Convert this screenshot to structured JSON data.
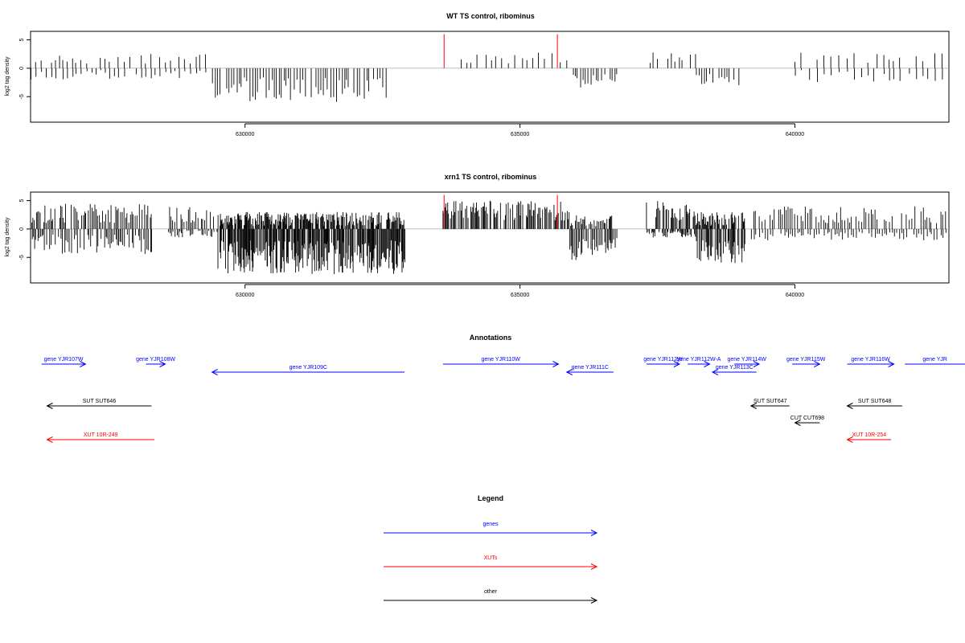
{
  "chart_data": [
    {
      "type": "bar",
      "title": "WT TS control, ribominus",
      "ylabel": "log2 tag density",
      "xlim": [
        626100,
        642800
      ],
      "ylim": [
        -9.5,
        6.5
      ],
      "yticks": [
        -5,
        0,
        5
      ],
      "xticks": [
        630000,
        635000,
        640000
      ],
      "segments": [
        {
          "from": 626100,
          "to": 629300,
          "pos": [
            0.8,
            2.5
          ],
          "neg": [
            -0.3,
            -2.0
          ],
          "step": 80
        },
        {
          "from": 629400,
          "to": 632600,
          "pos": [
            0,
            0
          ],
          "neg": [
            -1.5,
            -6.0
          ],
          "step": 45
        },
        {
          "from": 633600,
          "to": 635900,
          "pos": [
            0.8,
            2.8
          ],
          "neg": [
            0,
            0
          ],
          "step": 110
        },
        {
          "from": 635900,
          "to": 636800,
          "pos": [
            0,
            0
          ],
          "neg": [
            -1.0,
            -3.5
          ],
          "step": 50
        },
        {
          "from": 637300,
          "to": 638200,
          "pos": [
            0.8,
            2.8
          ],
          "neg": [
            0,
            0
          ],
          "step": 75
        },
        {
          "from": 638200,
          "to": 639000,
          "pos": [
            0,
            0
          ],
          "neg": [
            -1.0,
            -3.0
          ],
          "step": 45
        },
        {
          "from": 640000,
          "to": 642800,
          "pos": [
            0.8,
            2.8
          ],
          "neg": [
            -0.3,
            -2.5
          ],
          "step": 110
        }
      ],
      "highlights": [
        633620,
        635680
      ],
      "highlight_height": 6.0
    },
    {
      "type": "bar",
      "title": "xrn1 TS control, ribominus",
      "ylabel": "log2 tag density",
      "xlim": [
        626100,
        642800
      ],
      "ylim": [
        -9.5,
        6.5
      ],
      "yticks": [
        -5,
        0,
        5
      ],
      "xticks": [
        630000,
        635000,
        640000
      ],
      "segments": [
        {
          "from": 626100,
          "to": 628300,
          "pos": [
            1.0,
            4.5
          ],
          "neg": [
            -1.0,
            -4.5
          ],
          "step": 25
        },
        {
          "from": 628600,
          "to": 629500,
          "pos": [
            1.0,
            4.0
          ],
          "neg": [
            -0.3,
            -1.5
          ],
          "step": 30
        },
        {
          "from": 629500,
          "to": 632900,
          "pos": [
            0.5,
            3.0
          ],
          "neg": [
            -2.0,
            -8.0
          ],
          "step": 12
        },
        {
          "from": 633600,
          "to": 635900,
          "pos": [
            1.5,
            5.0
          ],
          "neg": [
            0,
            0
          ],
          "step": 18
        },
        {
          "from": 635900,
          "to": 636800,
          "pos": [
            0.5,
            2.5
          ],
          "neg": [
            -1.5,
            -5.5
          ],
          "step": 22
        },
        {
          "from": 637300,
          "to": 638200,
          "pos": [
            1.5,
            5.0
          ],
          "neg": [
            -0.3,
            -1.5
          ],
          "step": 18
        },
        {
          "from": 638200,
          "to": 639100,
          "pos": [
            0.5,
            3.0
          ],
          "neg": [
            -2.0,
            -6.0
          ],
          "step": 15
        },
        {
          "from": 639200,
          "to": 642800,
          "pos": [
            1.0,
            4.0
          ],
          "neg": [
            -0.5,
            -2.0
          ],
          "step": 40
        }
      ],
      "highlights": [
        633620,
        635680
      ],
      "highlight_height": 6.0
    }
  ],
  "annotations_title": "Annotations",
  "annotations": [
    {
      "label": "gene YJR107W",
      "x1": 626300,
      "x2": 627100,
      "dir": "right",
      "row": 0,
      "color": "#0000ff",
      "labelOffset": 0
    },
    {
      "label": "gene YJR108W",
      "x1": 628200,
      "x2": 628550,
      "dir": "right",
      "row": 0,
      "color": "#0000ff",
      "labelOffset": 0
    },
    {
      "label": "gene YJR109C",
      "x1": 629400,
      "x2": 632900,
      "dir": "left",
      "row": 1,
      "color": "#0000ff",
      "labelOffset": 0
    },
    {
      "label": "gene YJR110W",
      "x1": 633600,
      "x2": 635700,
      "dir": "right",
      "row": 0,
      "color": "#0000ff",
      "labelOffset": 0
    },
    {
      "label": "gene YJR111C",
      "x1": 635850,
      "x2": 636700,
      "dir": "left",
      "row": 1,
      "color": "#0000ff",
      "labelOffset": 0
    },
    {
      "label": "gene YJR112W",
      "x1": 637300,
      "x2": 637900,
      "dir": "right",
      "row": 0,
      "color": "#0000ff",
      "labelOffset": 0
    },
    {
      "label": "gene YJR112W-A",
      "x1": 638050,
      "x2": 638450,
      "dir": "right",
      "row": 0,
      "color": "#0000ff",
      "labelOffset": 0
    },
    {
      "label": "gene YJR113C",
      "x1": 638500,
      "x2": 639300,
      "dir": "left",
      "row": 1,
      "color": "#0000ff",
      "labelOffset": 0
    },
    {
      "label": "gene YJR114W",
      "x1": 638900,
      "x2": 639350,
      "dir": "right",
      "row": 0,
      "color": "#0000ff",
      "labelOffset": 0
    },
    {
      "label": "gene YJR115W",
      "x1": 639950,
      "x2": 640450,
      "dir": "right",
      "row": 0,
      "color": "#0000ff",
      "labelOffset": 0
    },
    {
      "label": "gene YJR116W",
      "x1": 640950,
      "x2": 641800,
      "dir": "right",
      "row": 0,
      "color": "#0000ff",
      "labelOffset": 0
    },
    {
      "label": "gene YJR",
      "x1": 642000,
      "x2": 643200,
      "dir": "right",
      "row": 0,
      "color": "#0000ff",
      "labelOffset": 0
    },
    {
      "label": "SUT SUT646",
      "x1": 626400,
      "x2": 628300,
      "dir": "left",
      "row": 2,
      "color": "#000000",
      "labelOffset": 0
    },
    {
      "label": "SUT SUT647",
      "x1": 639200,
      "x2": 639900,
      "dir": "left",
      "row": 2,
      "color": "#000000",
      "labelOffset": 0
    },
    {
      "label": "SUT SUT648",
      "x1": 640950,
      "x2": 641950,
      "dir": "left",
      "row": 2,
      "color": "#000000",
      "labelOffset": 0
    },
    {
      "label": "CUT CUT698",
      "x1": 640000,
      "x2": 640450,
      "dir": "left",
      "row": 3,
      "color": "#000000",
      "labelOffset": 0
    },
    {
      "label": "XUT 10R-249",
      "x1": 626400,
      "x2": 628350,
      "dir": "left",
      "row": 4,
      "color": "#ff0000",
      "labelOffset": 0
    },
    {
      "label": "XUT 10R-254",
      "x1": 640950,
      "x2": 641750,
      "dir": "left",
      "row": 4,
      "color": "#ff0000",
      "labelOffset": 0
    }
  ],
  "legend": {
    "title": "Legend",
    "items": [
      {
        "label": "genes",
        "color": "#0000ff"
      },
      {
        "label": "XUTs",
        "color": "#ff0000"
      },
      {
        "label": "other",
        "color": "#000000"
      }
    ]
  }
}
